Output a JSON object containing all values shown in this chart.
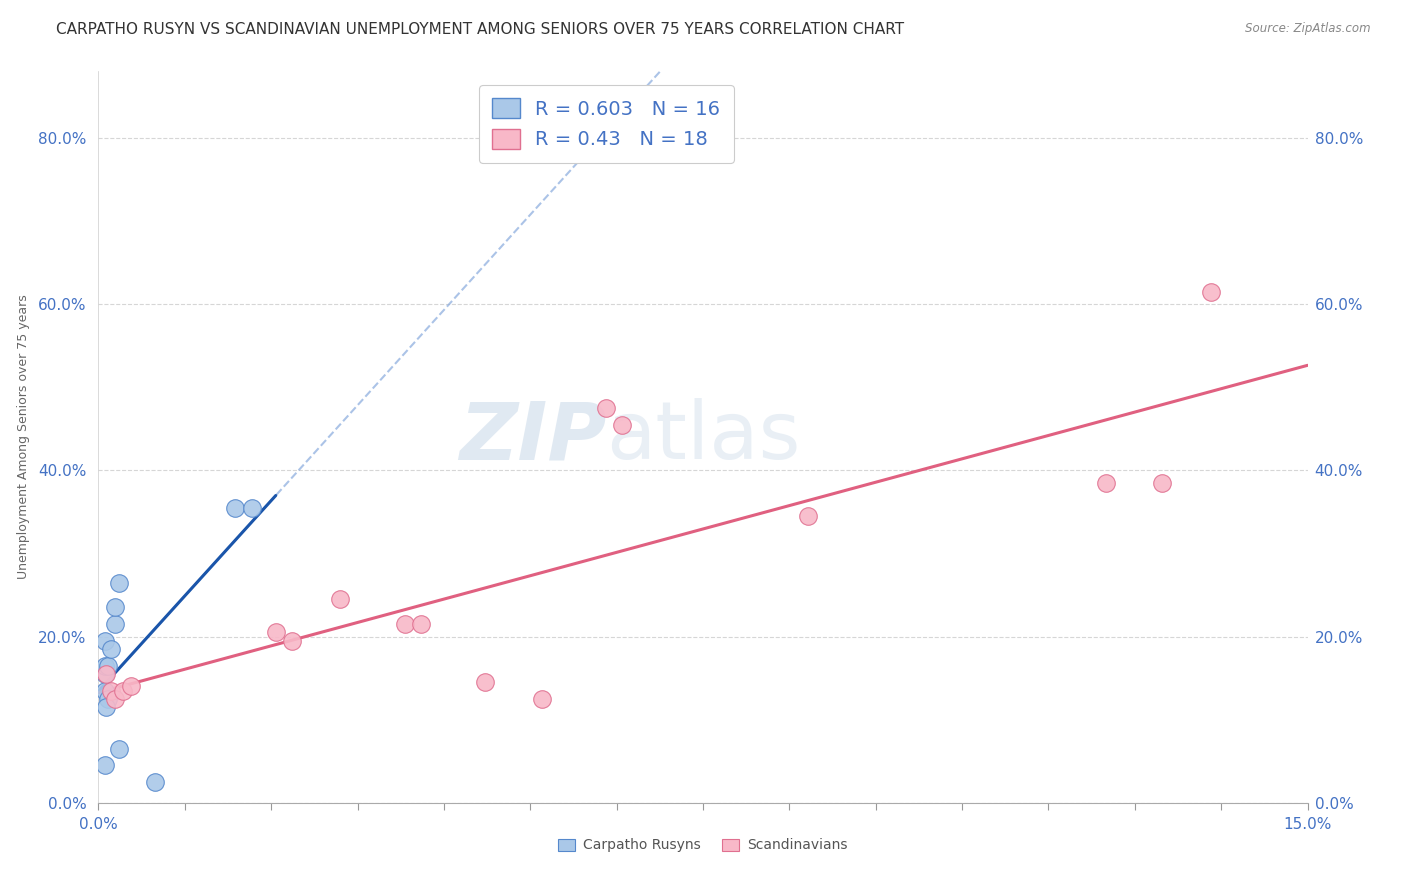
{
  "title": "CARPATHO RUSYN VS SCANDINAVIAN UNEMPLOYMENT AMONG SENIORS OVER 75 YEARS CORRELATION CHART",
  "source": "Source: ZipAtlas.com",
  "ylabel": "Unemployment Among Seniors over 75 years",
  "xlim": [
    0.0,
    0.15
  ],
  "ylim": [
    0.0,
    0.88
  ],
  "xlabel_ticks_labels": [
    "0.0%",
    "",
    "",
    "",
    "",
    "",
    "",
    "",
    "",
    "",
    "",
    "",
    "",
    "",
    "15.0%"
  ],
  "xlabel_ticks_vals": [
    0.0,
    0.01071,
    0.02143,
    0.03214,
    0.04286,
    0.05357,
    0.06429,
    0.075,
    0.08571,
    0.09643,
    0.10714,
    0.11786,
    0.12857,
    0.13929,
    0.15
  ],
  "ylabel_ticks_labels": [
    "0.0%",
    "20.0%",
    "40.0%",
    "60.0%",
    "80.0%"
  ],
  "ylabel_ticks_vals": [
    0.0,
    0.2,
    0.4,
    0.6,
    0.8
  ],
  "carpatho_rusyns": {
    "x": [
      0.0008,
      0.0008,
      0.0012,
      0.0008,
      0.0008,
      0.0012,
      0.001,
      0.002,
      0.002,
      0.0015,
      0.0008,
      0.017,
      0.019,
      0.0025,
      0.0025,
      0.007
    ],
    "y": [
      0.155,
      0.165,
      0.165,
      0.195,
      0.135,
      0.125,
      0.115,
      0.215,
      0.235,
      0.185,
      0.045,
      0.355,
      0.355,
      0.265,
      0.065,
      0.025
    ],
    "R": 0.603,
    "N": 16,
    "color": "#aac8e8",
    "edge_color": "#5588cc",
    "line_color": "#1a55aa",
    "line_dash_color": "#88aadd"
  },
  "scandinavians": {
    "x": [
      0.001,
      0.0015,
      0.002,
      0.003,
      0.004,
      0.022,
      0.024,
      0.03,
      0.038,
      0.04,
      0.048,
      0.055,
      0.063,
      0.065,
      0.088,
      0.125,
      0.132,
      0.138
    ],
    "y": [
      0.155,
      0.135,
      0.125,
      0.135,
      0.14,
      0.205,
      0.195,
      0.245,
      0.215,
      0.215,
      0.145,
      0.125,
      0.475,
      0.455,
      0.345,
      0.385,
      0.385,
      0.615
    ],
    "R": 0.43,
    "N": 18,
    "color": "#f8b8c8",
    "edge_color": "#e07090",
    "line_color": "#e06080"
  },
  "legend_blue_color": "#4472c4",
  "axis_tick_color": "#4472c4",
  "background_color": "#ffffff",
  "watermark_zip": "ZIP",
  "watermark_atlas": "atlas",
  "title_fontsize": 11,
  "axis_label_fontsize": 9,
  "tick_fontsize": 11,
  "legend_fontsize": 14,
  "watermark_fontsize": 58
}
